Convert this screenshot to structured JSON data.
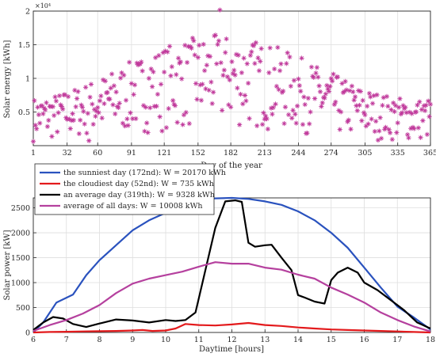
{
  "chart_data": [
    {
      "type": "scatter",
      "xlabel": "Day of the year",
      "ylabel": "Solar energy [kWh]",
      "exponent_label": "×10⁴",
      "xlim": [
        1,
        365
      ],
      "ylim": [
        0,
        20000
      ],
      "xticks": [
        1,
        32,
        60,
        91,
        121,
        152,
        182,
        213,
        244,
        274,
        305,
        335,
        365
      ],
      "yticks": [
        0.5,
        1,
        1.5,
        2
      ],
      "yticks_display": [
        "0.5",
        "1",
        "1.5",
        "2"
      ],
      "grid": true,
      "marker": "asterisk",
      "color": "#c0399b",
      "highlight": {
        "sunniest_day": 172,
        "sunniest_value": 20170,
        "cloudiest_day": 52,
        "cloudiest_value": 735
      }
    },
    {
      "type": "line",
      "xlabel": "Daytime [hours]",
      "ylabel": "Solar power [kW]",
      "xlim": [
        6,
        18
      ],
      "ylim": [
        0,
        2700
      ],
      "xticks": [
        6,
        7,
        8,
        9,
        10,
        11,
        12,
        13,
        14,
        15,
        16,
        17,
        18
      ],
      "yticks": [
        0,
        500,
        1000,
        1500,
        2000,
        2500
      ],
      "grid": true,
      "legend_position": "top-left",
      "series": [
        {
          "name": "the sunniest day (172nd): W = 20170 kWh",
          "color": "#2a52be",
          "x": [
            6,
            6.3,
            6.7,
            7.2,
            7.6,
            8,
            8.5,
            9,
            9.5,
            10,
            10.5,
            11,
            11.5,
            12,
            12.5,
            13,
            13.5,
            14,
            14.5,
            15,
            15.5,
            16,
            16.5,
            17,
            17.5,
            18
          ],
          "y": [
            0,
            200,
            600,
            760,
            1150,
            1450,
            1750,
            2050,
            2250,
            2400,
            2550,
            2640,
            2690,
            2700,
            2680,
            2630,
            2560,
            2430,
            2250,
            2000,
            1700,
            1300,
            900,
            520,
            300,
            60
          ]
        },
        {
          "name": "the cloudiest day (52nd): W = 735 kWh",
          "color": "#e31a1c",
          "x": [
            6,
            6.5,
            7,
            7.5,
            8,
            8.5,
            9,
            9.3,
            9.6,
            10,
            10.3,
            10.6,
            11,
            11.5,
            12,
            12.5,
            13,
            13.5,
            14,
            14.5,
            15,
            15.5,
            16,
            16.5,
            17,
            17.5,
            18
          ],
          "y": [
            0,
            10,
            15,
            20,
            25,
            30,
            40,
            50,
            30,
            40,
            80,
            170,
            150,
            140,
            160,
            190,
            150,
            130,
            100,
            80,
            60,
            50,
            40,
            30,
            20,
            10,
            0
          ]
        },
        {
          "name": "an average day (319th): W = 9328 kWh",
          "color": "#000000",
          "x": [
            6,
            6.3,
            6.6,
            6.9,
            7.2,
            7.6,
            8,
            8.5,
            9,
            9.5,
            10,
            10.3,
            10.6,
            10.9,
            11.2,
            11.5,
            11.8,
            12.1,
            12.3,
            12.5,
            12.7,
            13,
            13.2,
            13.5,
            13.8,
            14,
            14.2,
            14.5,
            14.8,
            15,
            15.2,
            15.5,
            15.8,
            16,
            16.4,
            16.8,
            17.2,
            17.6,
            18
          ],
          "y": [
            50,
            200,
            310,
            280,
            170,
            110,
            180,
            260,
            240,
            200,
            250,
            230,
            250,
            400,
            1250,
            2100,
            2630,
            2650,
            2620,
            1800,
            1720,
            1750,
            1760,
            1500,
            1250,
            750,
            700,
            620,
            580,
            1050,
            1200,
            1300,
            1200,
            1000,
            850,
            650,
            450,
            200,
            80
          ]
        },
        {
          "name": "average of all days: W = 10008 kWh",
          "color": "#b5409e",
          "x": [
            6,
            6.5,
            7,
            7.5,
            8,
            8.5,
            9,
            9.5,
            10,
            10.5,
            11,
            11.5,
            12,
            12.5,
            13,
            13.5,
            14,
            14.5,
            15,
            15.5,
            16,
            16.5,
            17,
            17.5,
            18
          ],
          "y": [
            30,
            150,
            250,
            380,
            550,
            790,
            980,
            1080,
            1150,
            1220,
            1320,
            1410,
            1380,
            1380,
            1300,
            1260,
            1160,
            1080,
            900,
            760,
            600,
            400,
            250,
            120,
            20
          ]
        }
      ]
    }
  ]
}
